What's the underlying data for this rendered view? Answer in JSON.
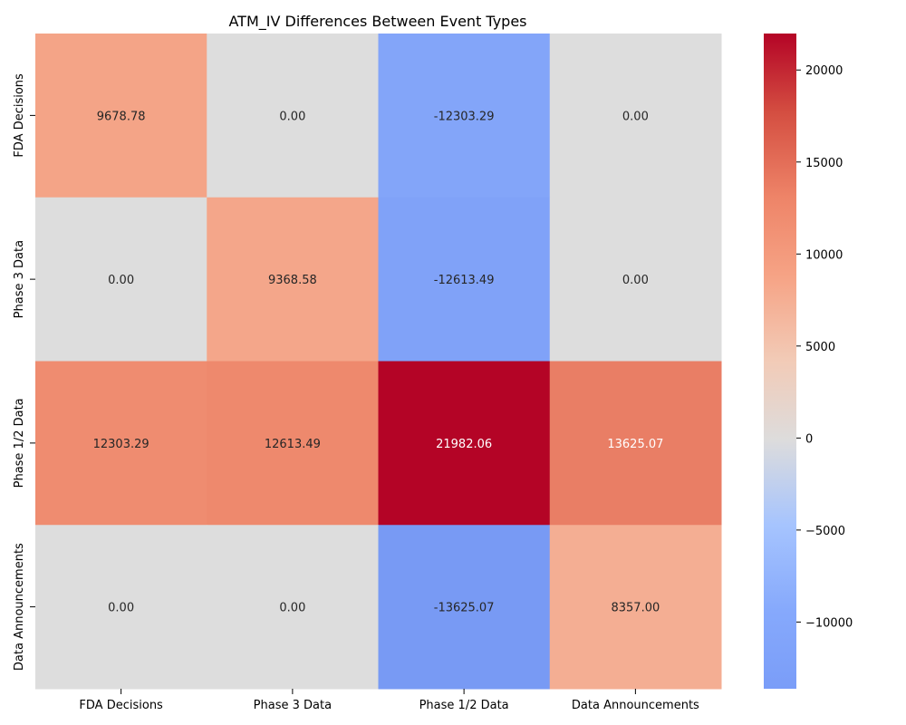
{
  "chart_data": {
    "type": "heatmap",
    "title": "ATM_IV Differences Between Event Types",
    "xlabel": "",
    "ylabel": "",
    "x_categories": [
      "FDA Decisions",
      "Phase 3 Data",
      "Phase 1/2 Data",
      "Data Announcements"
    ],
    "y_categories": [
      "FDA Decisions",
      "Phase 3 Data",
      "Phase 1/2 Data",
      "Data Announcements"
    ],
    "values": [
      [
        9678.78,
        0.0,
        -12303.29,
        0.0
      ],
      [
        0.0,
        9368.58,
        -12613.49,
        0.0
      ],
      [
        12303.29,
        12613.49,
        21982.06,
        13625.07
      ],
      [
        0.0,
        0.0,
        -13625.07,
        8357.0
      ]
    ],
    "cell_labels": [
      [
        "9678.78",
        "0.00",
        "-12303.29",
        "0.00"
      ],
      [
        "0.00",
        "9368.58",
        "-12613.49",
        "0.00"
      ],
      [
        "12303.29",
        "12613.49",
        "21982.06",
        "13625.07"
      ],
      [
        "0.00",
        "0.00",
        "-13625.07",
        "8357.00"
      ]
    ],
    "colormap": "coolwarm",
    "colorbar": {
      "range": [
        -13625.07,
        21982.06
      ],
      "center": 0,
      "ticks": [
        -10000,
        -5000,
        0,
        5000,
        10000,
        15000,
        20000
      ],
      "tick_labels": [
        "−10000",
        "−5000",
        "0",
        "5000",
        "10000",
        "15000",
        "20000"
      ]
    },
    "grid": false,
    "legend": "colorbar-right"
  }
}
